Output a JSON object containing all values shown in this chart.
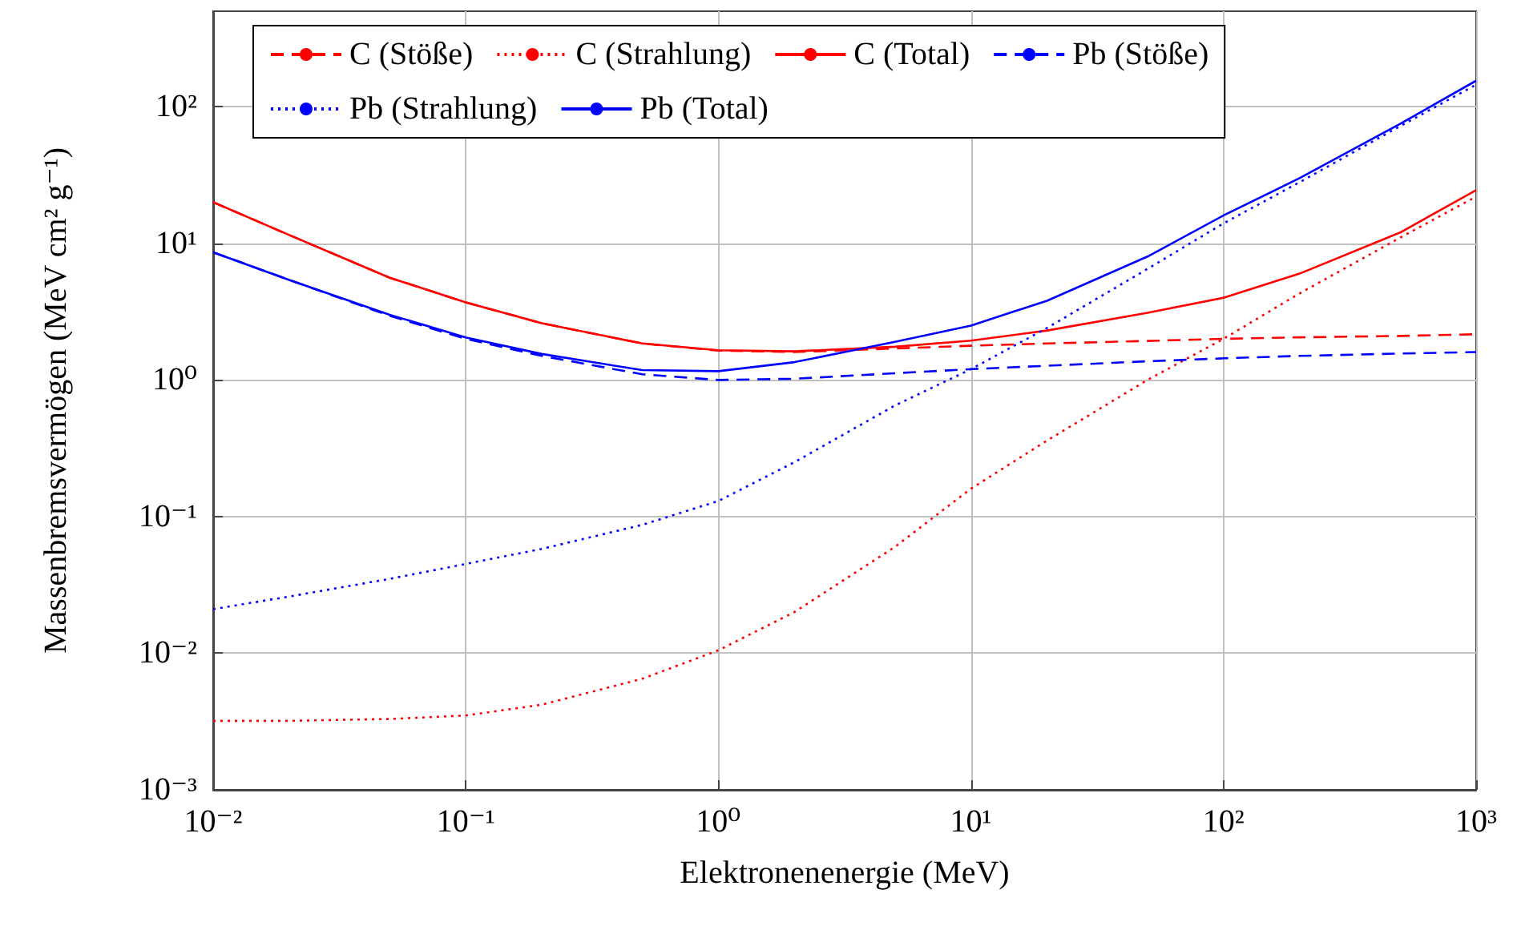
{
  "chart_data": {
    "type": "line",
    "xlabel": "Elektronenenergie (MeV)",
    "ylabel": "Massenbremsvermögen (MeV cm² g⁻¹)",
    "log": "xy",
    "grid": true,
    "legend": "top left",
    "marker": "none",
    "xlim": [
      0.01,
      1000
    ],
    "ylim": [
      0.001,
      500
    ],
    "xticks": [
      {
        "value": 0.01,
        "label": "10⁻²"
      },
      {
        "value": 0.1,
        "label": "10⁻¹"
      },
      {
        "value": 1,
        "label": "10⁰"
      },
      {
        "value": 10,
        "label": "10¹"
      },
      {
        "value": 100,
        "label": "10²"
      },
      {
        "value": 1000,
        "label": "10³"
      }
    ],
    "yticks": [
      {
        "value": 0.001,
        "label": "10⁻³"
      },
      {
        "value": 0.01,
        "label": "10⁻²"
      },
      {
        "value": 0.1,
        "label": "10⁻¹"
      },
      {
        "value": 1,
        "label": "10⁰"
      },
      {
        "value": 10,
        "label": "10¹"
      },
      {
        "value": 100,
        "label": "10²"
      }
    ],
    "x": [
      0.01,
      0.02,
      0.05,
      0.1,
      0.2,
      0.5,
      1,
      2,
      5,
      10,
      20,
      50,
      100,
      200,
      500,
      1000
    ],
    "series": [
      {
        "name": "C (Stöße)",
        "color": "#ff0000",
        "line_style": "dashed",
        "values": [
          20,
          11.5,
          5.6,
          3.7,
          2.6,
          1.85,
          1.64,
          1.6,
          1.7,
          1.78,
          1.85,
          1.93,
          2.0,
          2.05,
          2.1,
          2.16
        ]
      },
      {
        "name": "C (Strahlung)",
        "color": "#ff0000",
        "line_style": "dotted",
        "values": [
          0.0032,
          0.0032,
          0.0033,
          0.0035,
          0.0042,
          0.0065,
          0.0105,
          0.02,
          0.06,
          0.16,
          0.36,
          1.0,
          2.0,
          4.3,
          11,
          22
        ]
      },
      {
        "name": "C (Total)",
        "color": "#ff0000",
        "line_style": "solid",
        "values": [
          20,
          11.5,
          5.6,
          3.7,
          2.6,
          1.85,
          1.65,
          1.62,
          1.75,
          1.94,
          2.3,
          3.1,
          4.0,
          6.0,
          12,
          24.5
        ]
      },
      {
        "name": "Pb (Stöße)",
        "color": "#0000ff",
        "line_style": "dashed",
        "values": [
          8.6,
          5.4,
          2.95,
          2.0,
          1.5,
          1.1,
          1.0,
          1.02,
          1.12,
          1.2,
          1.27,
          1.37,
          1.44,
          1.5,
          1.56,
          1.6
        ]
      },
      {
        "name": "Pb (Strahlung)",
        "color": "#0000ff",
        "line_style": "dotted",
        "values": [
          0.021,
          0.026,
          0.035,
          0.045,
          0.058,
          0.087,
          0.13,
          0.25,
          0.65,
          1.2,
          2.4,
          6.5,
          14,
          28,
          72,
          145
        ]
      },
      {
        "name": "Pb (Total)",
        "color": "#0000ff",
        "line_style": "solid",
        "values": [
          8.6,
          5.4,
          3.0,
          2.05,
          1.55,
          1.18,
          1.16,
          1.35,
          1.9,
          2.5,
          3.8,
          8,
          16,
          30,
          75,
          155
        ]
      }
    ]
  }
}
